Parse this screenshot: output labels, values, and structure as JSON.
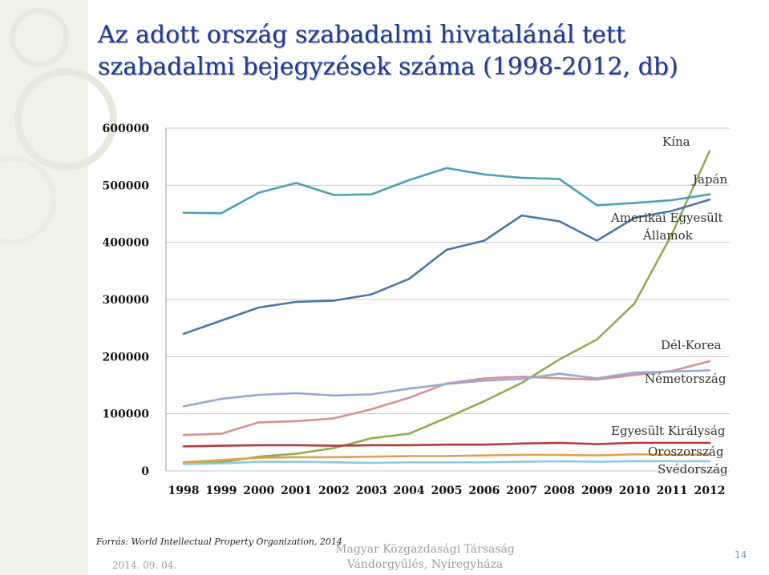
{
  "slide": {
    "title_line1": "Az adott ország szabadalmi hivatalánál tett",
    "title_line2": "szabadalmi bejegyzések száma (1998-2012, db)",
    "source": "Forrás: World Intellectual Property Organization, 2014",
    "date": "2014. 09. 04.",
    "society_line1": "Magyar Közgazdasági Társaság",
    "society_line2": "Vándorgyűlés, Nyíregyháza",
    "page_number": "14"
  },
  "chart_data": {
    "type": "line",
    "title": "",
    "xlabel": "",
    "ylabel": "",
    "ylim": [
      0,
      600000
    ],
    "y_ticks": [
      0,
      100000,
      200000,
      300000,
      400000,
      500000,
      600000
    ],
    "grid": "horizontal",
    "legend": "inline-right",
    "categories": [
      "1998",
      "1999",
      "2000",
      "2001",
      "2002",
      "2003",
      "2004",
      "2005",
      "2006",
      "2007",
      "2008",
      "2009",
      "2010",
      "2011",
      "2012"
    ],
    "series": [
      {
        "name": "Kína",
        "color": "#8fac50",
        "values": [
          13000,
          15000,
          25000,
          30000,
          40000,
          57000,
          65000,
          93000,
          122000,
          154000,
          195000,
          230000,
          293000,
          415000,
          560000
        ]
      },
      {
        "name": "Japán",
        "color": "#4ba0b8",
        "values": [
          452000,
          451000,
          487000,
          504000,
          483000,
          484000,
          509000,
          530000,
          519000,
          513000,
          511000,
          465000,
          469000,
          474000,
          484000
        ]
      },
      {
        "name": "Amerikai Egyesült Államok",
        "color": "#4a76a8",
        "values": [
          240000,
          263000,
          286000,
          296000,
          298000,
          309000,
          336000,
          387000,
          403000,
          447000,
          437000,
          403000,
          443000,
          455000,
          475000
        ]
      },
      {
        "name": "Dél-Korea",
        "color": "#d99090",
        "values": [
          63000,
          65000,
          85000,
          87000,
          92000,
          108000,
          128000,
          153000,
          162000,
          165000,
          162000,
          160000,
          168000,
          175000,
          192000
        ]
      },
      {
        "name": "Németország",
        "color": "#97a8d3",
        "values": [
          113000,
          126000,
          133000,
          136000,
          132000,
          134000,
          144000,
          152000,
          158000,
          161000,
          170000,
          162000,
          172000,
          174000,
          176000
        ]
      },
      {
        "name": "Egyesült Királyság",
        "color": "#b83a38",
        "values": [
          43000,
          44000,
          45000,
          45000,
          44000,
          45000,
          45000,
          46000,
          46000,
          48000,
          49000,
          47000,
          49000,
          49000,
          49000
        ]
      },
      {
        "name": "Oroszország",
        "color": "#e0a050",
        "values": [
          15000,
          19000,
          23000,
          24000,
          24000,
          25000,
          26000,
          26000,
          27000,
          28000,
          28000,
          27000,
          29000,
          28000,
          29000
        ]
      },
      {
        "name": "Svédország",
        "color": "#8ecbd8",
        "values": [
          12000,
          13000,
          16000,
          16000,
          15000,
          14000,
          15000,
          15000,
          15000,
          16000,
          17000,
          16000,
          17000,
          17000,
          17000
        ]
      }
    ]
  }
}
